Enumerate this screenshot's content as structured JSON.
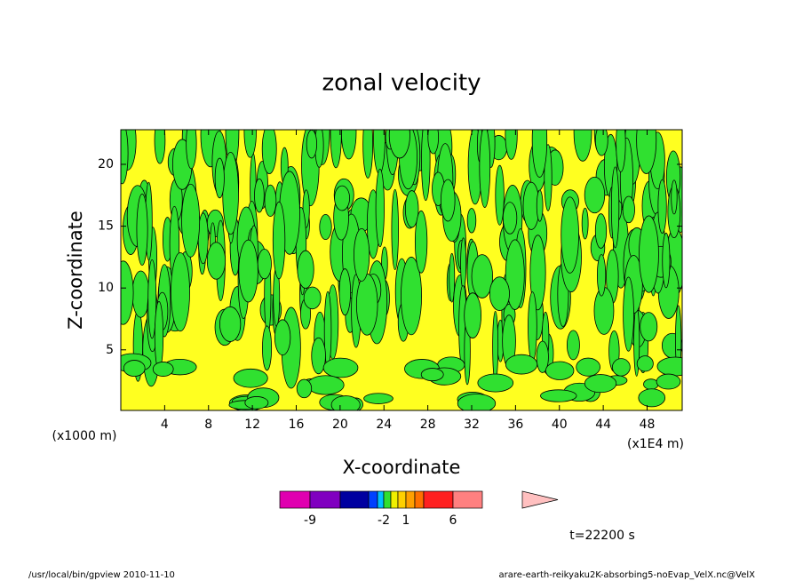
{
  "chart_data": {
    "type": "contour",
    "title": "zonal velocity",
    "xlabel": "X-coordinate",
    "ylabel": "Z-coordinate",
    "y_unit": "(x1000 m)",
    "x_unit": "(x1E4 m)",
    "xlim": [
      0,
      51.2
    ],
    "xticks": [
      4,
      8,
      12,
      16,
      20,
      24,
      28,
      32,
      36,
      40,
      44,
      48
    ],
    "ylim": [
      0.1,
      22.8
    ],
    "yticks": [
      5,
      10,
      15,
      20
    ],
    "field_colors": [
      "#ffff20",
      "#30e030"
    ],
    "colorbar": {
      "colors": [
        "#e000b0",
        "#8000c0",
        "#0000a0",
        "#0040ff",
        "#00c0ff",
        "#30e030",
        "#f0f000",
        "#ffd000",
        "#ffa000",
        "#ff7000",
        "#ff2020",
        "#ff8080"
      ],
      "extension_color": "#ffc0c0",
      "ticks": [
        -9,
        -2,
        1,
        6
      ]
    },
    "time_label": "t=22200 s",
    "footer_left": "/usr/local/bin/gpview  2010-11-10",
    "footer_right": "arare-earth-reikyaku2K-absorbing5-noEvap_VelX.nc@VelX"
  }
}
